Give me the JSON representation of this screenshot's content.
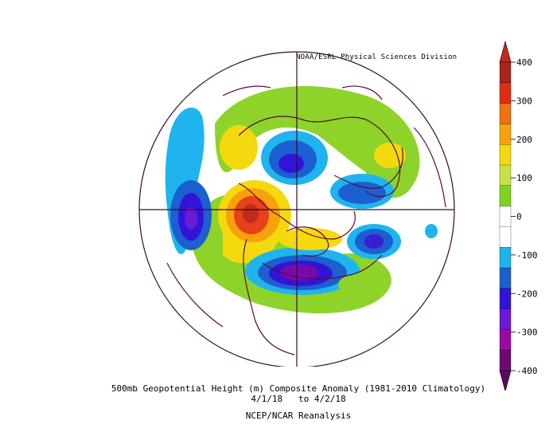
{
  "credit": "NOAA/ESRL Physical Sciences Division",
  "caption": {
    "line1": "500mb Geopotential Height (m) Composite Anomaly (1981-2010 Climatology)",
    "line2": "4/1/18   to 4/2/18",
    "line3": "NCEP/NCAR Reanalysis"
  },
  "colorbar": {
    "ticks": [
      "400",
      "300",
      "200",
      "100",
      "0",
      "-100",
      "-200",
      "-300",
      "-400"
    ],
    "colors": [
      "#6e0a6e",
      "#9b0aa0",
      "#6a1bd8",
      "#3214d8",
      "#1c5fd0",
      "#1fb4ee",
      "#ffffff",
      "#ffffff",
      "#7ed321",
      "#c6e24a",
      "#f5d90f",
      "#f6a20c",
      "#f07014",
      "#e02a14",
      "#a8241c"
    ]
  },
  "anomalies": [
    {
      "name": "north-pacific-low",
      "sign": "negative",
      "color": "#2c2cc8"
    },
    {
      "name": "western-canada-ridge",
      "sign": "positive",
      "color": "#e8401a"
    },
    {
      "name": "central-siberia-low",
      "sign": "negative",
      "color": "#1c5fd0"
    },
    {
      "name": "east-asia-low",
      "sign": "negative",
      "color": "#1c5fd0"
    },
    {
      "name": "eastern-north-america-low",
      "sign": "negative",
      "color": "#7a0aa8"
    },
    {
      "name": "northeast-atlantic-low",
      "sign": "negative",
      "color": "#3a1ed0"
    }
  ]
}
